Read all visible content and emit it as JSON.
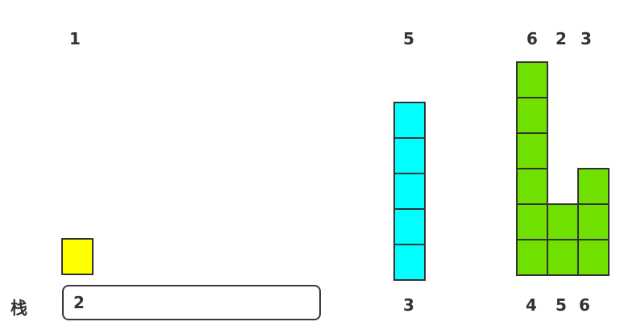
{
  "colors": {
    "yellow": "#ffff00",
    "cyan": "#00ffff",
    "green": "#70e000",
    "border": "#333333",
    "text": "#333333",
    "background": "#ffffff"
  },
  "stack": {
    "label": "栈",
    "items": [
      "2"
    ]
  },
  "bars": [
    {
      "top_label": "1",
      "bottom_label": "",
      "height": 1,
      "color": "yellow"
    },
    {
      "top_label": "5",
      "bottom_label": "3",
      "height": 5,
      "color": "cyan"
    },
    {
      "top_label": "6",
      "bottom_label": "4",
      "height": 6,
      "color": "green"
    },
    {
      "top_label": "2",
      "bottom_label": "5",
      "height": 2,
      "color": "green"
    },
    {
      "top_label": "3",
      "bottom_label": "6",
      "height": 3,
      "color": "green"
    }
  ]
}
